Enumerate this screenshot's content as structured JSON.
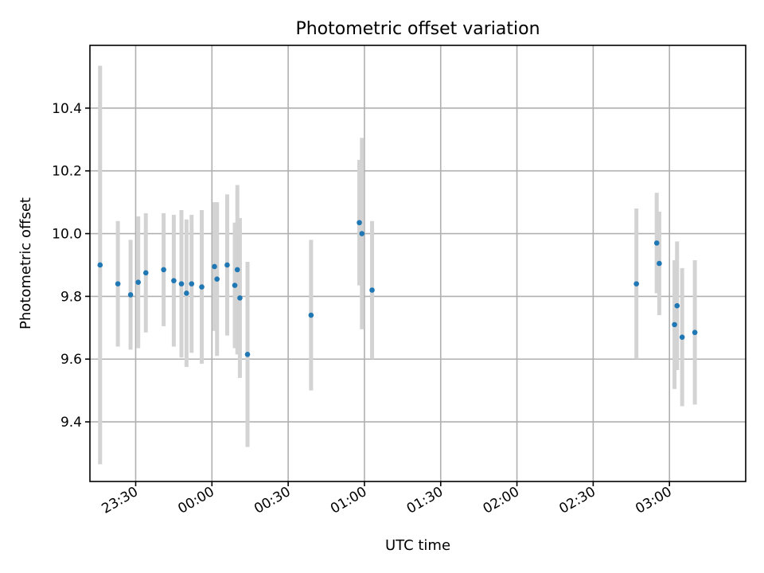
{
  "chart_data": {
    "type": "scatter",
    "title": "Photometric offset variation",
    "xlabel": "UTC time",
    "ylabel": "Photometric offset",
    "x_ticks": [
      "23:30",
      "00:00",
      "00:30",
      "01:00",
      "01:30",
      "02:00",
      "02:30",
      "03:00"
    ],
    "y_ticks": [
      "9.4",
      "9.6",
      "9.8",
      "10.0",
      "10.2",
      "10.4"
    ],
    "xlim": [
      "23:12",
      "03:30"
    ],
    "ylim": [
      9.21,
      10.6
    ],
    "grid": true,
    "series": [
      {
        "color": "#1f77b4",
        "errorbar_color": "#d3d3d3",
        "points": [
          {
            "x": "23:16",
            "y": 9.9,
            "err": 0.635
          },
          {
            "x": "23:23",
            "y": 9.84,
            "err": 0.2
          },
          {
            "x": "23:28",
            "y": 9.805,
            "err": 0.175
          },
          {
            "x": "23:31",
            "y": 9.845,
            "err": 0.21
          },
          {
            "x": "23:34",
            "y": 9.875,
            "err": 0.19
          },
          {
            "x": "23:41",
            "y": 9.885,
            "err": 0.18
          },
          {
            "x": "23:45",
            "y": 9.85,
            "err": 0.21
          },
          {
            "x": "23:48",
            "y": 9.84,
            "err": 0.235
          },
          {
            "x": "23:50",
            "y": 9.81,
            "err": 0.235
          },
          {
            "x": "23:52",
            "y": 9.84,
            "err": 0.22
          },
          {
            "x": "23:56",
            "y": 9.83,
            "err": 0.245
          },
          {
            "x": "00:01",
            "y": 9.895,
            "err": 0.205
          },
          {
            "x": "00:02",
            "y": 9.855,
            "err": 0.245
          },
          {
            "x": "00:06",
            "y": 9.9,
            "err": 0.225
          },
          {
            "x": "00:09",
            "y": 9.835,
            "err": 0.2
          },
          {
            "x": "00:10",
            "y": 9.885,
            "err": 0.27
          },
          {
            "x": "00:11",
            "y": 9.795,
            "err": 0.255
          },
          {
            "x": "00:14",
            "y": 9.615,
            "err": 0.295
          },
          {
            "x": "00:39",
            "y": 9.74,
            "err": 0.24
          },
          {
            "x": "00:58",
            "y": 10.035,
            "err": 0.2
          },
          {
            "x": "00:59",
            "y": 10.0,
            "err": 0.305
          },
          {
            "x": "01:03",
            "y": 9.82,
            "err": 0.22
          },
          {
            "x": "02:47",
            "y": 9.84,
            "err": 0.24
          },
          {
            "x": "02:55",
            "y": 9.97,
            "err": 0.16
          },
          {
            "x": "02:56",
            "y": 9.905,
            "err": 0.165
          },
          {
            "x": "03:02",
            "y": 9.71,
            "err": 0.205
          },
          {
            "x": "03:03",
            "y": 9.77,
            "err": 0.205
          },
          {
            "x": "03:05",
            "y": 9.67,
            "err": 0.22
          },
          {
            "x": "03:10",
            "y": 9.685,
            "err": 0.23
          }
        ]
      }
    ]
  }
}
